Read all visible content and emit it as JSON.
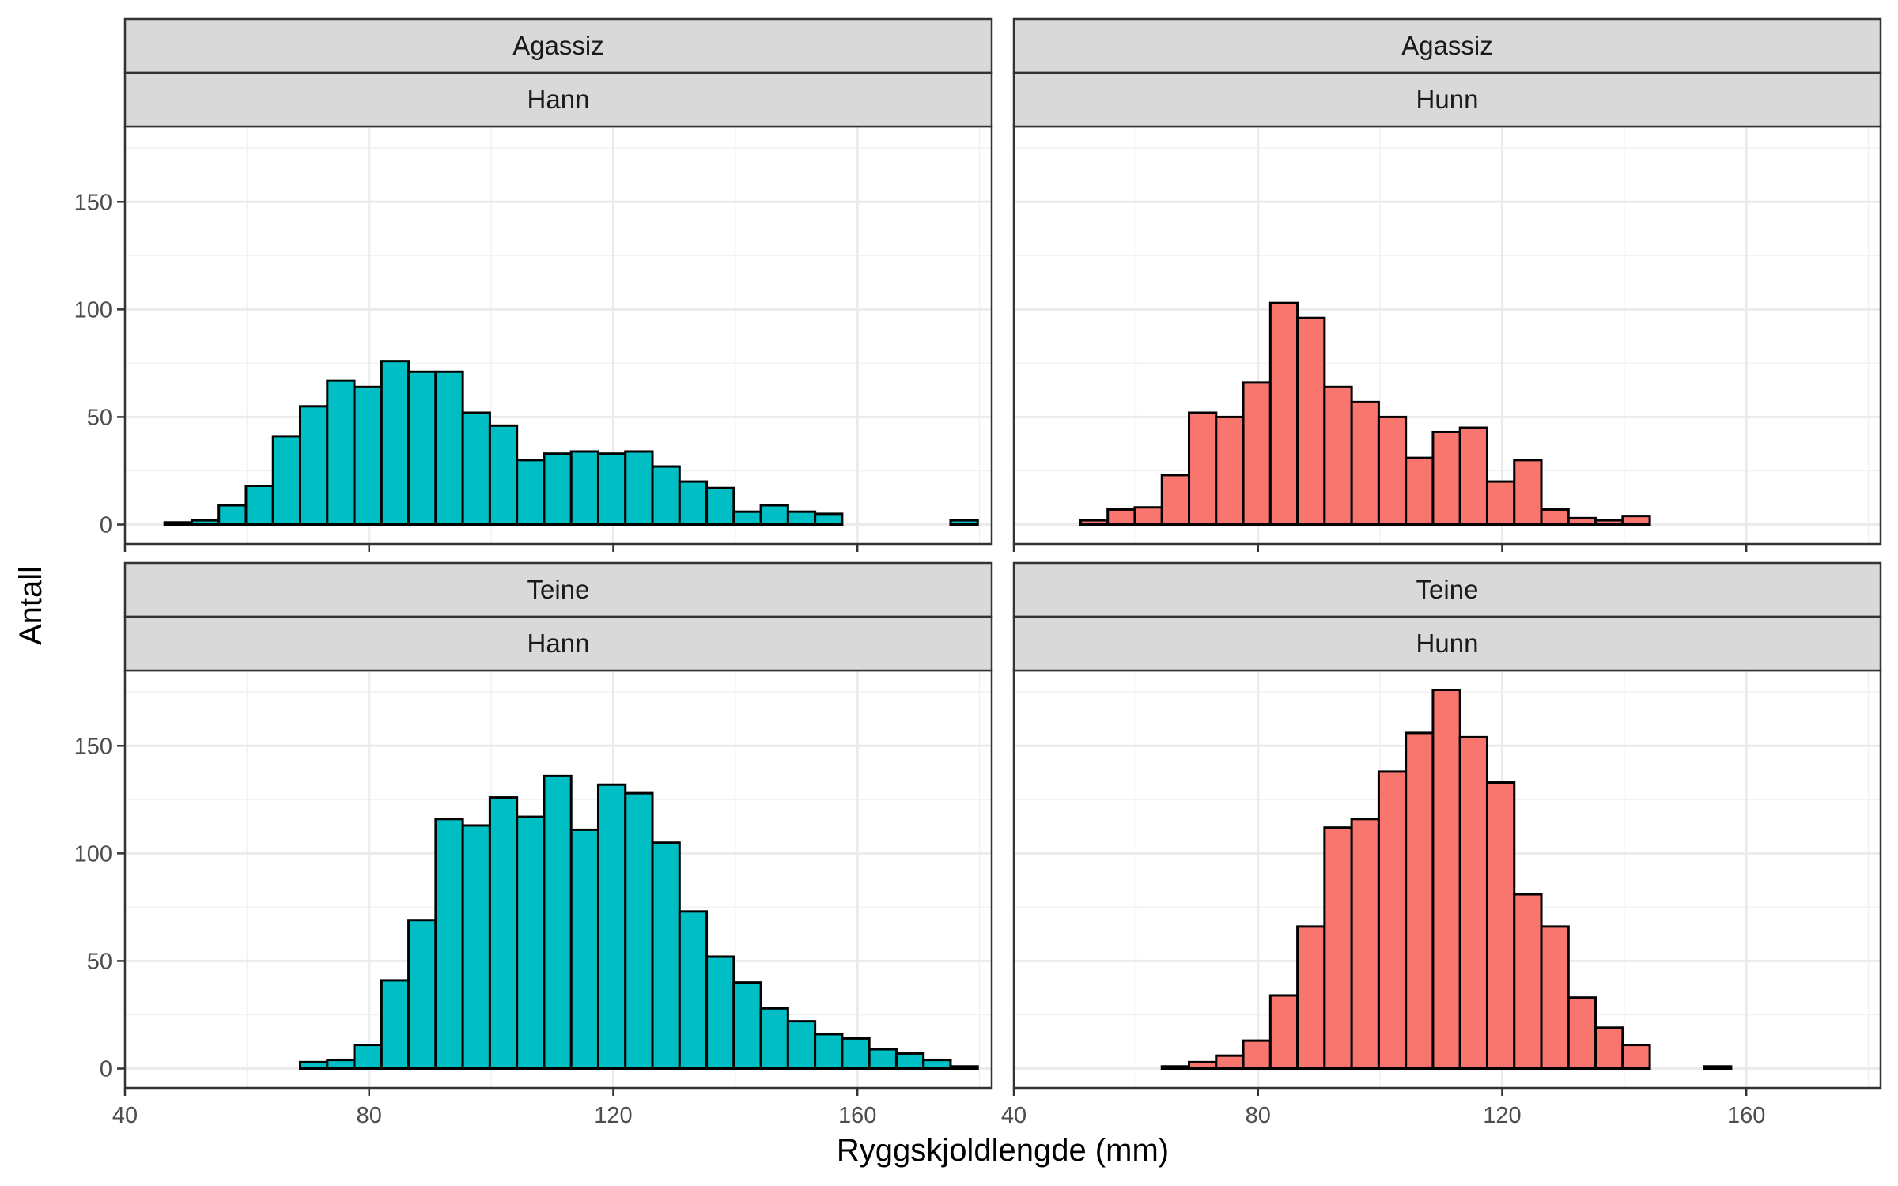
{
  "chart_data": {
    "type": "bar",
    "subtype": "faceted-histogram",
    "xlabel": "Ryggskjoldlengde (mm)",
    "ylabel": "Antall",
    "xlim": [
      40,
      182
    ],
    "ylim": [
      -9,
      185
    ],
    "x_ticks": [
      40,
      80,
      120,
      160
    ],
    "y_ticks": [
      0,
      50,
      100,
      150
    ],
    "grid": true,
    "bin_start": 46.5,
    "bin_width": 4.44,
    "colors": {
      "Hann": "#00BFC4",
      "Hunn": "#F8766D",
      "outline": "#000000"
    },
    "facets": [
      {
        "strip_top": "Agassiz",
        "strip_bottom": "Hann",
        "counts": [
          1,
          2,
          9,
          18,
          41,
          55,
          67,
          64,
          76,
          71,
          71,
          52,
          46,
          30,
          33,
          34,
          33,
          34,
          27,
          20,
          17,
          6,
          9,
          6,
          5,
          0,
          0,
          0,
          0,
          2
        ]
      },
      {
        "strip_top": "Agassiz",
        "strip_bottom": "Hunn",
        "counts": [
          0,
          2,
          7,
          8,
          23,
          52,
          50,
          66,
          103,
          96,
          64,
          57,
          50,
          31,
          43,
          45,
          20,
          30,
          7,
          3,
          2,
          4,
          0,
          0,
          0,
          0,
          0,
          0,
          0,
          0
        ]
      },
      {
        "strip_top": "Teine",
        "strip_bottom": "Hann",
        "counts": [
          0,
          0,
          0,
          0,
          0,
          3,
          4,
          11,
          41,
          69,
          116,
          113,
          126,
          117,
          136,
          111,
          132,
          128,
          105,
          73,
          52,
          40,
          28,
          22,
          16,
          14,
          9,
          7,
          4,
          1
        ]
      },
      {
        "strip_top": "Teine",
        "strip_bottom": "Hunn",
        "counts": [
          0,
          0,
          0,
          0,
          1,
          3,
          6,
          13,
          34,
          66,
          112,
          116,
          138,
          156,
          176,
          154,
          133,
          81,
          66,
          33,
          19,
          11,
          0,
          0,
          1,
          0,
          0,
          0,
          0,
          0
        ]
      }
    ]
  }
}
